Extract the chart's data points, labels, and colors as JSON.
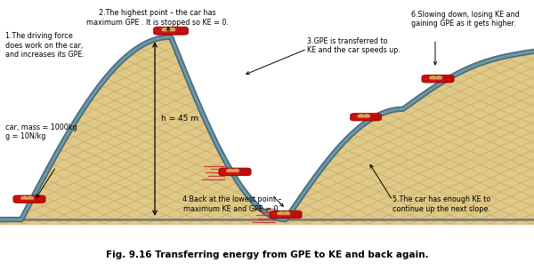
{
  "caption": "Fig. 9.16 Transferring energy from GPE to KE and back again.",
  "background_color": "#ffffff",
  "track_color": "#4a6878",
  "track_highlight": "#6a98a8",
  "fill_color": "#dfc98a",
  "hatch_color": "#c8a855",
  "ground_color": "#777777",
  "car_body_color": "#cc1111",
  "car_dark_color": "#990000",
  "passenger_color": "#e8aa66",
  "annotation_fontsize": 5.8,
  "caption_fontsize": 7.5,
  "annotations": {
    "ann1_text": "1.The driving force\ndoes work on the car,\nand increases its GPE.",
    "ann2_text": "2.The highest point – the car has\nmaximum GPE . It is stopped so KE = 0.",
    "ann3_text": "3.GPE is transferred to\nKE and the car speeds up.",
    "ann4_text": "4.Back at the lowest point –\nmaximum KE and GPE = 0.",
    "ann5_text": "5.The car has enough KE to\ncontinue up the next slope.",
    "ann6_text": "6.Slowing down, losing KE and\ngaining GPE as it gets higher.",
    "mass_text": "car, mass = 1000kg\ng = 10N/kg",
    "height_text": "h = 45 m"
  }
}
